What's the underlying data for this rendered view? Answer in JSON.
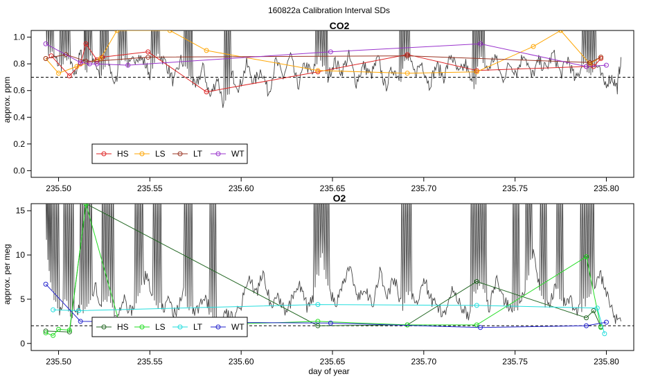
{
  "figure": {
    "title": "160822a   Calibration Interval SDs",
    "xlabel": "day of year"
  },
  "chart_data": [
    {
      "type": "line",
      "title": "CO2",
      "ylabel": "approx. ppm",
      "xlim": [
        235.485,
        235.815
      ],
      "ylim": [
        -0.05,
        1.05
      ],
      "xticks": [
        "235.50",
        "235.55",
        "235.60",
        "235.65",
        "235.70",
        "235.75",
        "235.80"
      ],
      "yticks": [
        "0.0",
        "0.2",
        "0.4",
        "0.6",
        "0.8",
        "1.0"
      ],
      "reference_line": 0.7,
      "background_color": "#444444",
      "background_trace": [
        [
          235.493,
          0.91
        ],
        [
          235.497,
          0.86
        ],
        [
          235.501,
          0.78
        ],
        [
          235.505,
          0.83
        ],
        [
          235.509,
          0.72
        ],
        [
          235.512,
          0.88
        ],
        [
          235.515,
          0.77
        ],
        [
          235.519,
          0.85
        ],
        [
          235.523,
          0.7
        ],
        [
          235.527,
          0.82
        ],
        [
          235.531,
          0.64
        ],
        [
          235.535,
          0.9
        ],
        [
          235.539,
          0.78
        ],
        [
          235.543,
          0.87
        ],
        [
          235.547,
          0.81
        ],
        [
          235.551,
          0.7
        ],
        [
          235.555,
          0.88
        ],
        [
          235.559,
          0.8
        ],
        [
          235.563,
          0.66
        ],
        [
          235.567,
          0.83
        ],
        [
          235.571,
          0.74
        ],
        [
          235.575,
          0.61
        ],
        [
          235.579,
          0.78
        ],
        [
          235.583,
          0.55
        ],
        [
          235.587,
          0.7
        ],
        [
          235.591,
          0.45
        ],
        [
          235.595,
          0.72
        ],
        [
          235.599,
          0.62
        ],
        [
          235.603,
          0.8
        ],
        [
          235.607,
          0.66
        ],
        [
          235.611,
          0.76
        ],
        [
          235.615,
          0.58
        ],
        [
          235.619,
          0.82
        ],
        [
          235.623,
          0.7
        ],
        [
          235.627,
          0.86
        ],
        [
          235.631,
          0.63
        ],
        [
          235.635,
          0.8
        ],
        [
          235.639,
          0.72
        ],
        [
          235.643,
          0.88
        ],
        [
          235.647,
          0.68
        ],
        [
          235.651,
          0.82
        ],
        [
          235.655,
          0.74
        ],
        [
          235.659,
          0.86
        ],
        [
          235.663,
          0.66
        ],
        [
          235.667,
          0.79
        ],
        [
          235.671,
          0.71
        ],
        [
          235.675,
          0.84
        ],
        [
          235.679,
          0.62
        ],
        [
          235.683,
          0.77
        ],
        [
          235.687,
          0.69
        ],
        [
          235.691,
          0.85
        ],
        [
          235.695,
          0.73
        ],
        [
          235.699,
          0.81
        ],
        [
          235.703,
          0.64
        ],
        [
          235.707,
          0.79
        ],
        [
          235.711,
          0.7
        ],
        [
          235.715,
          0.87
        ],
        [
          235.719,
          0.72
        ],
        [
          235.723,
          0.8
        ],
        [
          235.727,
          0.61
        ],
        [
          235.731,
          0.83
        ],
        [
          235.735,
          0.75
        ],
        [
          235.739,
          0.86
        ],
        [
          235.743,
          0.68
        ],
        [
          235.747,
          0.8
        ],
        [
          235.751,
          0.74
        ],
        [
          235.755,
          0.89
        ],
        [
          235.759,
          0.7
        ],
        [
          235.763,
          0.82
        ],
        [
          235.767,
          0.76
        ],
        [
          235.771,
          0.88
        ],
        [
          235.775,
          0.72
        ],
        [
          235.779,
          0.84
        ],
        [
          235.783,
          0.67
        ],
        [
          235.787,
          0.8
        ],
        [
          235.791,
          0.73
        ],
        [
          235.795,
          0.78
        ],
        [
          235.799,
          0.65
        ],
        [
          235.803,
          0.7
        ],
        [
          235.806,
          0.62
        ],
        [
          235.808,
          0.85
        ]
      ],
      "spike_ranges": [
        [
          235.493,
          235.497
        ],
        [
          235.501,
          235.506
        ],
        [
          235.514,
          235.518
        ],
        [
          235.523,
          235.527
        ],
        [
          235.533,
          235.537
        ],
        [
          235.551,
          235.555
        ],
        [
          235.569,
          235.573
        ],
        [
          235.591,
          235.594
        ],
        [
          235.641,
          235.647
        ],
        [
          235.687,
          235.692
        ],
        [
          235.727,
          235.733
        ],
        [
          235.787,
          235.794
        ]
      ],
      "legend": [
        "HS",
        "LS",
        "LT",
        "WT"
      ],
      "series": [
        {
          "name": "HS",
          "color": "#dd2222",
          "x": [
            235.496,
            235.506,
            235.512,
            235.515,
            235.521,
            235.524,
            235.549,
            235.581,
            235.642,
            235.691,
            235.729,
            235.789,
            235.793,
            235.797
          ],
          "y": [
            0.86,
            0.71,
            0.8,
            0.95,
            0.83,
            0.85,
            0.89,
            0.59,
            0.74,
            0.87,
            0.75,
            0.78,
            0.78,
            0.84
          ]
        },
        {
          "name": "LS",
          "color": "#ffa500",
          "x": [
            235.493,
            235.5,
            235.51,
            235.523,
            235.532,
            235.561,
            235.581,
            235.642,
            235.691,
            235.729,
            235.76,
            235.775,
            235.791,
            235.797
          ],
          "y": [
            0.84,
            0.73,
            0.78,
            0.84,
            1.05,
            1.05,
            0.9,
            0.75,
            0.73,
            0.74,
            0.93,
            1.05,
            0.8,
            0.85
          ]
        },
        {
          "name": "LT",
          "color": "#993322",
          "x": [
            235.493,
            235.504,
            235.515,
            235.521,
            235.549,
            235.691,
            235.791,
            235.797
          ],
          "y": [
            0.84,
            0.87,
            0.82,
            0.82,
            0.85,
            0.86,
            0.81,
            0.85
          ]
        },
        {
          "name": "WT",
          "color": "#9932cc",
          "x": [
            235.493,
            235.512,
            235.517,
            235.521,
            235.538,
            235.649,
            235.731,
            235.789,
            235.8
          ],
          "y": [
            0.95,
            0.81,
            0.8,
            0.8,
            0.79,
            0.89,
            0.95,
            0.78,
            0.79
          ]
        }
      ]
    },
    {
      "type": "line",
      "title": "O2",
      "ylabel": "approx. per meg",
      "xlim": [
        235.485,
        235.815
      ],
      "ylim": [
        -0.8,
        15.8
      ],
      "xticks": [
        "235.50",
        "235.55",
        "235.60",
        "235.65",
        "235.70",
        "235.75",
        "235.80"
      ],
      "yticks": [
        "0",
        "5",
        "10",
        "15"
      ],
      "reference_line": 2.0,
      "background_color": "#444444",
      "background_trace": [
        [
          235.493,
          12.3
        ],
        [
          235.496,
          6.0
        ],
        [
          235.5,
          3.5
        ],
        [
          235.504,
          5.0
        ],
        [
          235.508,
          3.0
        ],
        [
          235.512,
          4.2
        ],
        [
          235.516,
          3.8
        ],
        [
          235.52,
          6.5
        ],
        [
          235.524,
          4.0
        ],
        [
          235.528,
          5.2
        ],
        [
          235.532,
          3.0
        ],
        [
          235.536,
          4.8
        ],
        [
          235.54,
          3.5
        ],
        [
          235.544,
          5.5
        ],
        [
          235.548,
          7.8
        ],
        [
          235.552,
          5.0
        ],
        [
          235.556,
          4.0
        ],
        [
          235.56,
          4.6
        ],
        [
          235.564,
          3.2
        ],
        [
          235.568,
          5.8
        ],
        [
          235.572,
          4.2
        ],
        [
          235.576,
          3.6
        ],
        [
          235.58,
          5.5
        ],
        [
          235.584,
          3.0
        ],
        [
          235.588,
          2.5
        ],
        [
          235.592,
          3.5
        ],
        [
          235.596,
          3.0
        ],
        [
          235.6,
          4.5
        ],
        [
          235.604,
          7.5
        ],
        [
          235.608,
          5.5
        ],
        [
          235.612,
          8.0
        ],
        [
          235.616,
          4.5
        ],
        [
          235.62,
          5.5
        ],
        [
          235.624,
          3.5
        ],
        [
          235.628,
          5.0
        ],
        [
          235.632,
          6.5
        ],
        [
          235.636,
          4.2
        ],
        [
          235.64,
          5.5
        ],
        [
          235.644,
          10.0
        ],
        [
          235.648,
          6.0
        ],
        [
          235.652,
          4.5
        ],
        [
          235.656,
          7.0
        ],
        [
          235.66,
          8.5
        ],
        [
          235.664,
          5.0
        ],
        [
          235.668,
          6.5
        ],
        [
          235.672,
          4.0
        ],
        [
          235.676,
          8.0
        ],
        [
          235.68,
          5.5
        ],
        [
          235.684,
          7.5
        ],
        [
          235.688,
          4.0
        ],
        [
          235.692,
          6.0
        ],
        [
          235.696,
          4.5
        ],
        [
          235.7,
          7.5
        ],
        [
          235.704,
          5.0
        ],
        [
          235.708,
          4.0
        ],
        [
          235.712,
          3.2
        ],
        [
          235.716,
          6.5
        ],
        [
          235.72,
          4.5
        ],
        [
          235.724,
          3.0
        ],
        [
          235.728,
          5.5
        ],
        [
          235.732,
          6.5
        ],
        [
          235.736,
          4.0
        ],
        [
          235.74,
          7.5
        ],
        [
          235.744,
          5.0
        ],
        [
          235.748,
          3.5
        ],
        [
          235.752,
          4.5
        ],
        [
          235.756,
          6.0
        ],
        [
          235.76,
          10.8
        ],
        [
          235.764,
          5.5
        ],
        [
          235.768,
          4.0
        ],
        [
          235.772,
          6.5
        ],
        [
          235.776,
          4.5
        ],
        [
          235.78,
          5.0
        ],
        [
          235.784,
          3.5
        ],
        [
          235.788,
          4.5
        ],
        [
          235.792,
          5.5
        ],
        [
          235.796,
          8.0
        ],
        [
          235.8,
          6.0
        ],
        [
          235.804,
          3.0
        ],
        [
          235.808,
          2.5
        ]
      ],
      "spike_ranges": [
        [
          235.493,
          235.5
        ],
        [
          235.503,
          235.509
        ],
        [
          235.512,
          235.518
        ],
        [
          235.524,
          235.53
        ],
        [
          235.542,
          235.546
        ],
        [
          235.552,
          235.556
        ],
        [
          235.569,
          235.573
        ],
        [
          235.583,
          235.586
        ],
        [
          235.64,
          235.648
        ],
        [
          235.687,
          235.694
        ],
        [
          235.726,
          235.734
        ],
        [
          235.749,
          235.752
        ],
        [
          235.756,
          235.759
        ],
        [
          235.764,
          235.767
        ],
        [
          235.773,
          235.776
        ],
        [
          235.786,
          235.793
        ]
      ],
      "legend": [
        "HS",
        "LS",
        "LT",
        "WT"
      ],
      "series": [
        {
          "name": "HS",
          "color": "#226622",
          "x": [
            235.493,
            235.506,
            235.515,
            235.642,
            235.691,
            235.729,
            235.789,
            235.793,
            235.797
          ],
          "y": [
            1.4,
            1.3,
            15.8,
            2.0,
            2.1,
            7.0,
            2.9,
            3.7,
            1.9
          ]
        },
        {
          "name": "LS",
          "color": "#22dd22",
          "x": [
            235.493,
            235.497,
            235.5,
            235.506,
            235.515,
            235.534,
            235.642,
            235.691,
            235.729,
            235.789,
            235.797
          ],
          "y": [
            1.2,
            0.9,
            1.6,
            1.5,
            15.8,
            1.8,
            2.5,
            2.1,
            2.1,
            9.8,
            1.8
          ]
        },
        {
          "name": "LT",
          "color": "#22dddd",
          "x": [
            235.497,
            235.511,
            235.642,
            235.729,
            235.795,
            235.799
          ],
          "y": [
            3.8,
            3.7,
            4.4,
            4.3,
            4.0,
            1.1
          ]
        },
        {
          "name": "WT",
          "color": "#2222cc",
          "x": [
            235.493,
            235.512,
            235.649,
            235.731,
            235.789,
            235.8
          ],
          "y": [
            6.7,
            2.5,
            2.3,
            1.8,
            2.0,
            2.4
          ]
        }
      ]
    }
  ]
}
